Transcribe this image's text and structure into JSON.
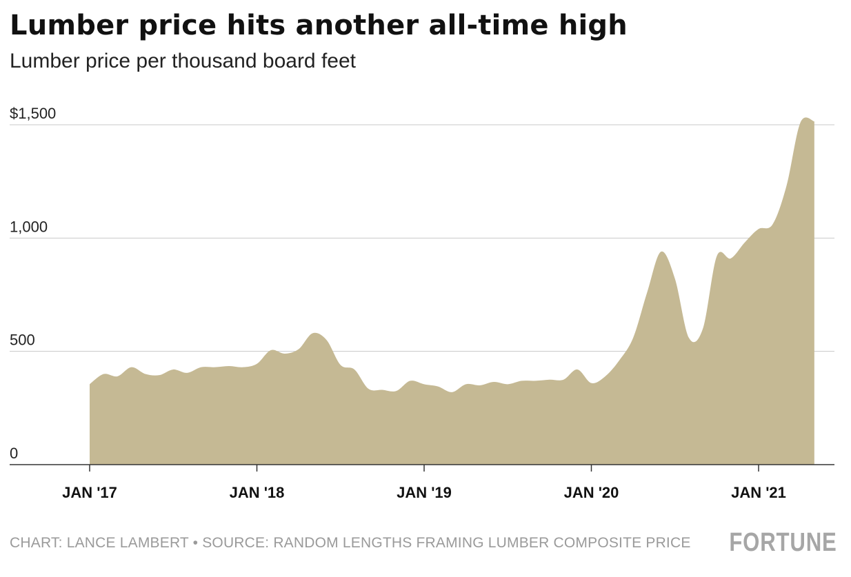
{
  "title": "Lumber price hits another all-time high",
  "subtitle": "Lumber price per thousand board feet",
  "footer": "CHART: LANCE LAMBERT • SOURCE: RANDOM LENGTHS FRAMING LUMBER COMPOSITE PRICE",
  "logo": "FORTUNE",
  "chart_data": {
    "type": "area",
    "fill_color": "#c5b994",
    "grid": true,
    "ylim": [
      0,
      1500
    ],
    "y_ticks": [
      {
        "value": 0,
        "label": "0"
      },
      {
        "value": 500,
        "label": "500"
      },
      {
        "value": 1000,
        "label": "1,000"
      },
      {
        "value": 1500,
        "label": "$1,500"
      }
    ],
    "x_ticks": [
      {
        "date": "2017-01",
        "label": "JAN '17"
      },
      {
        "date": "2018-01",
        "label": "JAN '18"
      },
      {
        "date": "2019-01",
        "label": "JAN '19"
      },
      {
        "date": "2020-01",
        "label": "JAN '20"
      },
      {
        "date": "2021-01",
        "label": "JAN '21"
      }
    ],
    "series": [
      {
        "x": [
          "2017-01",
          "2017-02",
          "2017-03",
          "2017-04",
          "2017-05",
          "2017-06",
          "2017-07",
          "2017-08",
          "2017-09",
          "2017-10",
          "2017-11",
          "2017-12",
          "2018-01",
          "2018-02",
          "2018-03",
          "2018-04",
          "2018-05",
          "2018-06",
          "2018-07",
          "2018-08",
          "2018-09",
          "2018-10",
          "2018-11",
          "2018-12",
          "2019-01",
          "2019-02",
          "2019-03",
          "2019-04",
          "2019-05",
          "2019-06",
          "2019-07",
          "2019-08",
          "2019-09",
          "2019-10",
          "2019-11",
          "2019-12",
          "2020-01",
          "2020-02",
          "2020-03",
          "2020-04",
          "2020-05",
          "2020-06",
          "2020-07",
          "2020-08",
          "2020-09",
          "2020-10",
          "2020-11",
          "2020-12",
          "2021-01",
          "2021-02",
          "2021-03",
          "2021-04",
          "2021-05"
        ],
        "y": [
          355,
          400,
          390,
          430,
          400,
          395,
          420,
          405,
          430,
          430,
          435,
          430,
          445,
          505,
          490,
          510,
          580,
          550,
          440,
          420,
          335,
          330,
          325,
          370,
          355,
          345,
          320,
          355,
          350,
          365,
          355,
          370,
          370,
          375,
          375,
          420,
          360,
          390,
          460,
          560,
          760,
          940,
          820,
          560,
          600,
          920,
          910,
          980,
          1040,
          1060,
          1230,
          1510,
          1515
        ]
      }
    ]
  }
}
